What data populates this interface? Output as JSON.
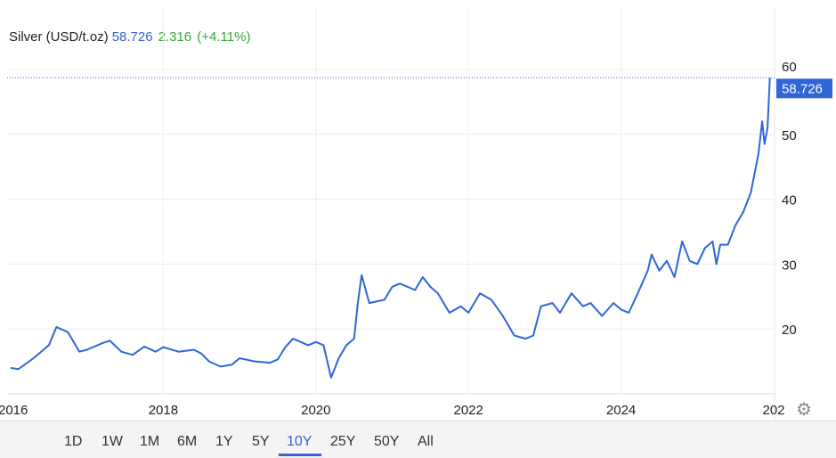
{
  "header": {
    "title": "Silver (USD/t.oz)",
    "price": "58.726",
    "change": "2.316",
    "change_pct": "(+4.11%)"
  },
  "ranges": [
    "1D",
    "1W",
    "1M",
    "6M",
    "1Y",
    "5Y",
    "10Y",
    "25Y",
    "50Y",
    "All"
  ],
  "active_range": "10Y",
  "colors": {
    "line": "#2f66d6",
    "up": "#3aa63a"
  },
  "chart_data": {
    "type": "line",
    "title": "Silver (USD/t.oz)",
    "xlabel": "",
    "ylabel": "",
    "xlim": [
      2016,
      2026
    ],
    "ylim": [
      10,
      62
    ],
    "x_ticks": [
      "2016",
      "2018",
      "2020",
      "2022",
      "2024",
      "202"
    ],
    "y_ticks": [
      20,
      30,
      40,
      50,
      60
    ],
    "last_value_label": "58.726",
    "grid": true,
    "series": [
      {
        "name": "Silver",
        "points": [
          [
            2016.0,
            14
          ],
          [
            2016.1,
            13.8
          ],
          [
            2016.3,
            15.5
          ],
          [
            2016.5,
            17.5
          ],
          [
            2016.6,
            20.3
          ],
          [
            2016.75,
            19.5
          ],
          [
            2016.9,
            16.5
          ],
          [
            2017.0,
            16.8
          ],
          [
            2017.2,
            17.8
          ],
          [
            2017.3,
            18.2
          ],
          [
            2017.45,
            16.5
          ],
          [
            2017.6,
            16
          ],
          [
            2017.75,
            17.3
          ],
          [
            2017.9,
            16.5
          ],
          [
            2018.0,
            17.2
          ],
          [
            2018.2,
            16.5
          ],
          [
            2018.4,
            16.8
          ],
          [
            2018.5,
            16.2
          ],
          [
            2018.6,
            15
          ],
          [
            2018.75,
            14.2
          ],
          [
            2018.9,
            14.5
          ],
          [
            2019.0,
            15.5
          ],
          [
            2019.2,
            15
          ],
          [
            2019.4,
            14.8
          ],
          [
            2019.5,
            15.3
          ],
          [
            2019.6,
            17.2
          ],
          [
            2019.7,
            18.5
          ],
          [
            2019.9,
            17.5
          ],
          [
            2020.0,
            18
          ],
          [
            2020.1,
            17.5
          ],
          [
            2020.2,
            12.5
          ],
          [
            2020.3,
            15.5
          ],
          [
            2020.4,
            17.5
          ],
          [
            2020.5,
            18.5
          ],
          [
            2020.55,
            24
          ],
          [
            2020.6,
            28.3
          ],
          [
            2020.7,
            24
          ],
          [
            2020.9,
            24.5
          ],
          [
            2021.0,
            26.5
          ],
          [
            2021.1,
            27
          ],
          [
            2021.3,
            26
          ],
          [
            2021.4,
            28
          ],
          [
            2021.5,
            26.5
          ],
          [
            2021.6,
            25.5
          ],
          [
            2021.75,
            22.5
          ],
          [
            2021.9,
            23.5
          ],
          [
            2022.0,
            22.5
          ],
          [
            2022.15,
            25.5
          ],
          [
            2022.3,
            24.5
          ],
          [
            2022.45,
            22
          ],
          [
            2022.6,
            19
          ],
          [
            2022.75,
            18.5
          ],
          [
            2022.85,
            19
          ],
          [
            2022.95,
            23.5
          ],
          [
            2023.1,
            24
          ],
          [
            2023.2,
            22.5
          ],
          [
            2023.35,
            25.5
          ],
          [
            2023.5,
            23.5
          ],
          [
            2023.6,
            24
          ],
          [
            2023.75,
            22
          ],
          [
            2023.9,
            24
          ],
          [
            2024.0,
            23
          ],
          [
            2024.1,
            22.5
          ],
          [
            2024.2,
            25
          ],
          [
            2024.35,
            29
          ],
          [
            2024.4,
            31.5
          ],
          [
            2024.5,
            29
          ],
          [
            2024.6,
            30.5
          ],
          [
            2024.7,
            28
          ],
          [
            2024.8,
            33.5
          ],
          [
            2024.9,
            30.5
          ],
          [
            2025.0,
            30
          ],
          [
            2025.1,
            32.5
          ],
          [
            2025.2,
            33.5
          ],
          [
            2025.25,
            30
          ],
          [
            2025.3,
            33
          ],
          [
            2025.4,
            33
          ],
          [
            2025.5,
            36
          ],
          [
            2025.6,
            38
          ],
          [
            2025.7,
            41
          ],
          [
            2025.8,
            47
          ],
          [
            2025.85,
            52
          ],
          [
            2025.88,
            48.5
          ],
          [
            2025.92,
            51
          ],
          [
            2025.95,
            58.726
          ]
        ]
      }
    ]
  }
}
